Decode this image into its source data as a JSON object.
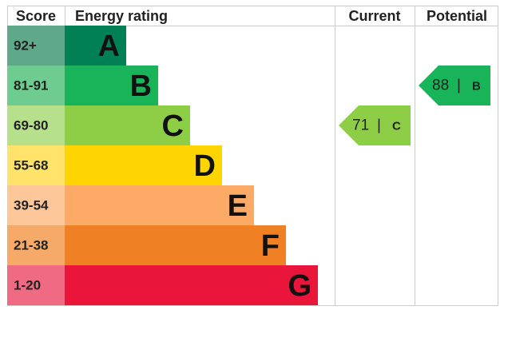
{
  "header": {
    "score": "Score",
    "rating": "Energy rating",
    "current": "Current",
    "potential": "Potential"
  },
  "bands": [
    {
      "score": "92+",
      "letter": "A",
      "color": "#008054",
      "score_color": "#5fa88a"
    },
    {
      "score": "81-91",
      "letter": "B",
      "color": "#19b459",
      "score_color": "#6fcc91"
    },
    {
      "score": "69-80",
      "letter": "C",
      "color": "#8dce46",
      "score_color": "#b7e08c"
    },
    {
      "score": "55-68",
      "letter": "D",
      "color": "#ffd500",
      "score_color": "#ffe36a"
    },
    {
      "score": "39-54",
      "letter": "E",
      "color": "#fcaa65",
      "score_color": "#fdc79a"
    },
    {
      "score": "21-38",
      "letter": "F",
      "color": "#ef8023",
      "score_color": "#f5aa6a"
    },
    {
      "score": "1-20",
      "letter": "G",
      "color": "#e9153b",
      "score_color": "#f06a84"
    }
  ],
  "separator": "|",
  "current": {
    "value": 71,
    "letter": "C"
  },
  "potential": {
    "value": 88,
    "letter": "B"
  }
}
